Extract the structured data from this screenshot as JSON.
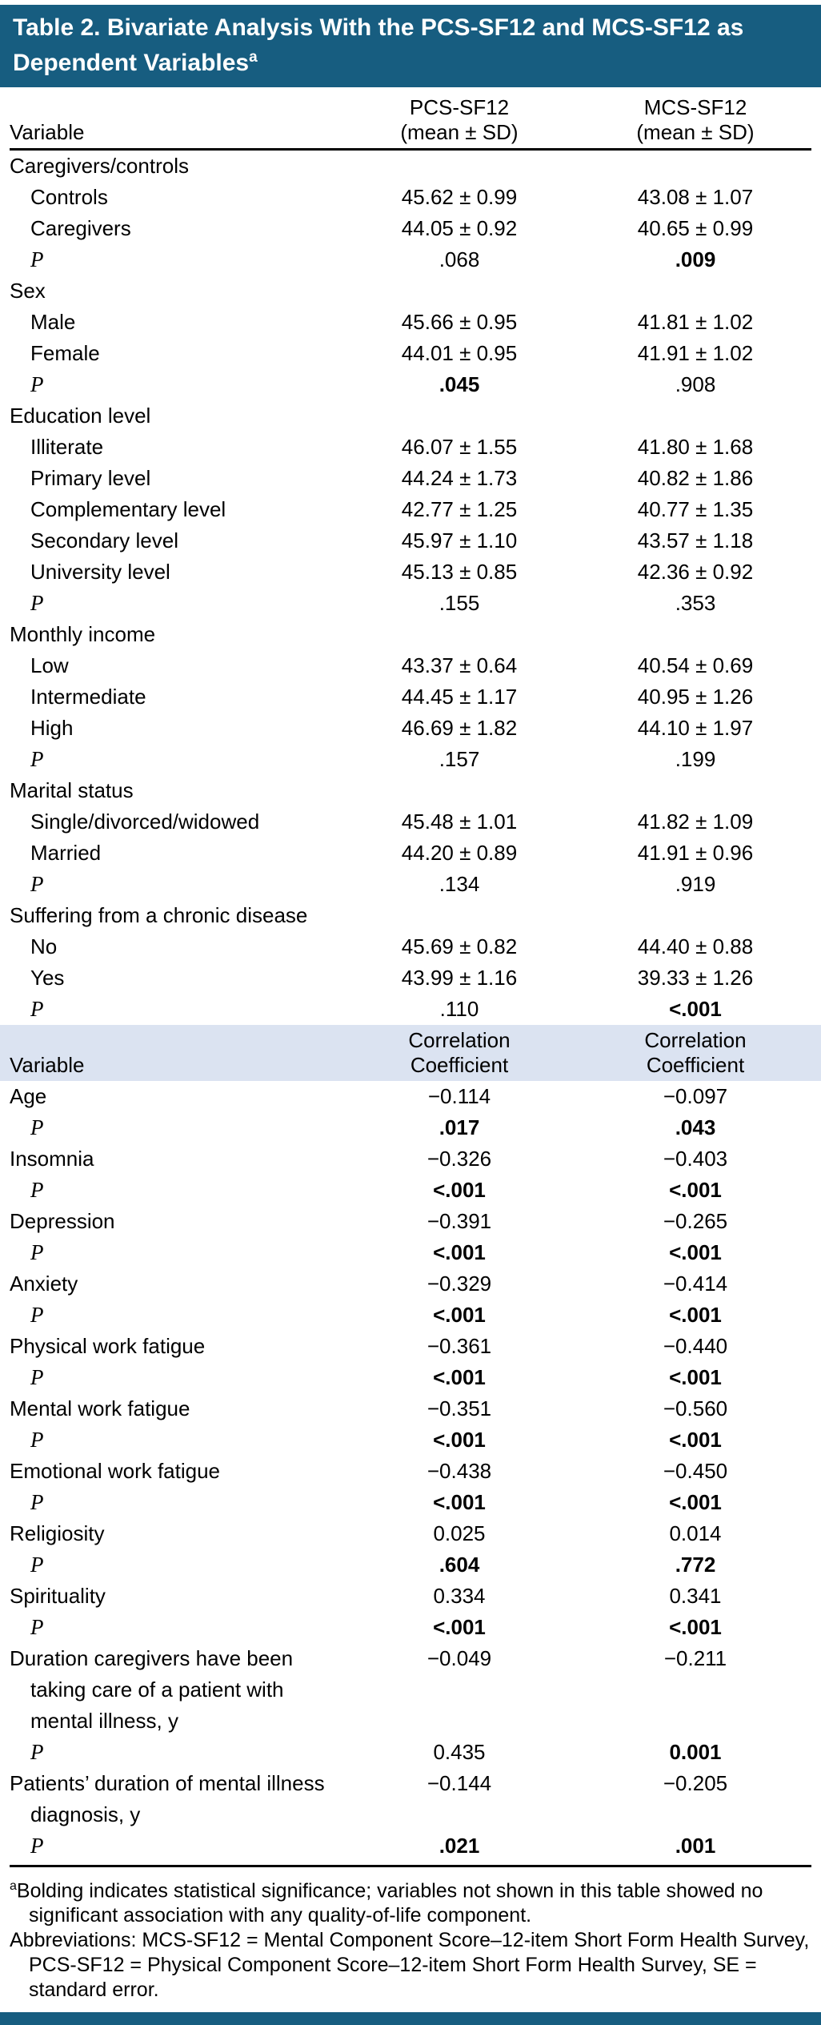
{
  "title": {
    "text": "Table 2. Bivariate Analysis With the PCS-SF12 and MCS-SF12 as Dependent Variables",
    "superscript": "a"
  },
  "colors": {
    "header_bg": "#175D80",
    "band_bg": "#DBE3F1"
  },
  "columns": {
    "variable": "Variable",
    "pcs_line1": "PCS-SF12",
    "pcs_line2": "(mean ± SD)",
    "mcs_line1": "MCS-SF12",
    "mcs_line2": "(mean ± SD)"
  },
  "section2_columns": {
    "variable": "Variable",
    "col1_line1": "Correlation",
    "col1_line2": "Coefficient",
    "col2_line1": "Correlation",
    "col2_line2": "Coefficient"
  },
  "rows_means": [
    {
      "type": "section",
      "indent": 0,
      "label": "Caregivers/controls"
    },
    {
      "type": "data",
      "indent": 1,
      "label": "Controls",
      "c1": "45.62 ± 0.99",
      "c2": "43.08 ± 1.07"
    },
    {
      "type": "data",
      "indent": 1,
      "label": "Caregivers",
      "c1": "44.05 ± 0.92",
      "c2": "40.65 ± 0.99"
    },
    {
      "type": "p",
      "indent": 1,
      "label": "P",
      "c1": ".068",
      "c2": ".009",
      "bold1": false,
      "bold2": true
    },
    {
      "type": "section",
      "indent": 0,
      "label": "Sex"
    },
    {
      "type": "data",
      "indent": 1,
      "label": "Male",
      "c1": "45.66 ± 0.95",
      "c2": "41.81 ± 1.02"
    },
    {
      "type": "data",
      "indent": 1,
      "label": "Female",
      "c1": "44.01 ± 0.95",
      "c2": "41.91 ± 1.02"
    },
    {
      "type": "p",
      "indent": 1,
      "label": "P",
      "c1": ".045",
      "c2": ".908",
      "bold1": true,
      "bold2": false
    },
    {
      "type": "section",
      "indent": 0,
      "label": "Education level"
    },
    {
      "type": "data",
      "indent": 1,
      "label": "Illiterate",
      "c1": "46.07 ± 1.55",
      "c2": "41.80 ± 1.68"
    },
    {
      "type": "data",
      "indent": 1,
      "label": "Primary level",
      "c1": "44.24 ± 1.73",
      "c2": "40.82 ± 1.86"
    },
    {
      "type": "data",
      "indent": 1,
      "label": "Complementary level",
      "c1": "42.77 ± 1.25",
      "c2": "40.77 ± 1.35"
    },
    {
      "type": "data",
      "indent": 1,
      "label": "Secondary level",
      "c1": "45.97 ± 1.10",
      "c2": "43.57 ± 1.18"
    },
    {
      "type": "data",
      "indent": 1,
      "label": "University level",
      "c1": "45.13 ± 0.85",
      "c2": "42.36 ± 0.92"
    },
    {
      "type": "p",
      "indent": 1,
      "label": "P",
      "c1": ".155",
      "c2": ".353",
      "bold1": false,
      "bold2": false
    },
    {
      "type": "section",
      "indent": 0,
      "label": "Monthly income"
    },
    {
      "type": "data",
      "indent": 1,
      "label": "Low",
      "c1": "43.37 ± 0.64",
      "c2": "40.54 ± 0.69"
    },
    {
      "type": "data",
      "indent": 1,
      "label": "Intermediate",
      "c1": "44.45 ± 1.17",
      "c2": "40.95 ± 1.26"
    },
    {
      "type": "data",
      "indent": 1,
      "label": "High",
      "c1": "46.69 ± 1.82",
      "c2": "44.10 ± 1.97"
    },
    {
      "type": "p",
      "indent": 1,
      "label": "P",
      "c1": ".157",
      "c2": ".199",
      "bold1": false,
      "bold2": false
    },
    {
      "type": "section",
      "indent": 0,
      "label": "Marital status"
    },
    {
      "type": "data",
      "indent": 1,
      "label": "Single/divorced/widowed",
      "c1": "45.48 ± 1.01",
      "c2": "41.82 ± 1.09"
    },
    {
      "type": "data",
      "indent": 1,
      "label": "Married",
      "c1": "44.20 ± 0.89",
      "c2": "41.91 ± 0.96"
    },
    {
      "type": "p",
      "indent": 1,
      "label": "P",
      "c1": ".134",
      "c2": ".919",
      "bold1": false,
      "bold2": false
    },
    {
      "type": "section",
      "indent": 0,
      "label": "Suffering from a chronic disease"
    },
    {
      "type": "data",
      "indent": 1,
      "label": "No",
      "c1": "45.69 ± 0.82",
      "c2": "44.40 ± 0.88"
    },
    {
      "type": "data",
      "indent": 1,
      "label": "Yes",
      "c1": "43.99 ± 1.16",
      "c2": "39.33 ± 1.26"
    },
    {
      "type": "p",
      "indent": 1,
      "label": "P",
      "c1": ".110",
      "c2": "<.001",
      "bold1": false,
      "bold2": true
    }
  ],
  "rows_corr": [
    {
      "type": "data",
      "indent": 0,
      "label": "Age",
      "c1": "−0.114",
      "c2": "−0.097"
    },
    {
      "type": "p",
      "indent": 1,
      "label": "P",
      "c1": ".017",
      "c2": ".043",
      "bold1": true,
      "bold2": true
    },
    {
      "type": "data",
      "indent": 0,
      "label": "Insomnia",
      "c1": "−0.326",
      "c2": "−0.403"
    },
    {
      "type": "p",
      "indent": 1,
      "label": "P",
      "c1": "<.001",
      "c2": "<.001",
      "bold1": true,
      "bold2": true
    },
    {
      "type": "data",
      "indent": 0,
      "label": "Depression",
      "c1": "−0.391",
      "c2": "−0.265"
    },
    {
      "type": "p",
      "indent": 1,
      "label": "P",
      "c1": "<.001",
      "c2": "<.001",
      "bold1": true,
      "bold2": true
    },
    {
      "type": "data",
      "indent": 0,
      "label": "Anxiety",
      "c1": "−0.329",
      "c2": "−0.414"
    },
    {
      "type": "p",
      "indent": 1,
      "label": "P",
      "c1": "<.001",
      "c2": "<.001",
      "bold1": true,
      "bold2": true
    },
    {
      "type": "data",
      "indent": 0,
      "label": "Physical work fatigue",
      "c1": "−0.361",
      "c2": "−0.440"
    },
    {
      "type": "p",
      "indent": 1,
      "label": "P",
      "c1": "<.001",
      "c2": "<.001",
      "bold1": true,
      "bold2": true
    },
    {
      "type": "data",
      "indent": 0,
      "label": "Mental work fatigue",
      "c1": "−0.351",
      "c2": "−0.560"
    },
    {
      "type": "p",
      "indent": 1,
      "label": "P",
      "c1": "<.001",
      "c2": "<.001",
      "bold1": true,
      "bold2": true
    },
    {
      "type": "data",
      "indent": 0,
      "label": "Emotional work fatigue",
      "c1": "−0.438",
      "c2": "−0.450"
    },
    {
      "type": "p",
      "indent": 1,
      "label": "P",
      "c1": "<.001",
      "c2": "<.001",
      "bold1": true,
      "bold2": true
    },
    {
      "type": "data",
      "indent": 0,
      "label": "Religiosity",
      "c1": "0.025",
      "c2": "0.014"
    },
    {
      "type": "p",
      "indent": 1,
      "label": "P",
      "c1": ".604",
      "c2": ".772",
      "bold1": true,
      "bold2": true
    },
    {
      "type": "data",
      "indent": 0,
      "label": "Spirituality",
      "c1": "0.334",
      "c2": "0.341"
    },
    {
      "type": "p",
      "indent": 1,
      "label": "P",
      "c1": "<.001",
      "c2": "<.001",
      "bold1": true,
      "bold2": true
    },
    {
      "type": "data",
      "indent": 0,
      "label": "Duration caregivers have been taking care of a patient with mental illness, y",
      "c1": "−0.049",
      "c2": "−0.211"
    },
    {
      "type": "p",
      "indent": 1,
      "label": "P",
      "c1": "0.435",
      "c2": "0.001",
      "bold1": false,
      "bold2": true
    },
    {
      "type": "data",
      "indent": 0,
      "label": "Patients’ duration of mental illness diagnosis, y",
      "c1": "−0.144",
      "c2": "−0.205"
    },
    {
      "type": "p",
      "indent": 1,
      "label": "P",
      "c1": ".021",
      "c2": ".001",
      "bold1": true,
      "bold2": true
    }
  ],
  "footnotes": {
    "note_a_sup": "a",
    "note_a": "Bolding indicates statistical significance; variables not shown in this table showed no significant association with any quality-of-life component.",
    "abbreviations": "Abbreviations: MCS-SF12 = Mental Component Score–12-item Short Form Health Survey, PCS-SF12 = Physical Component Score–12-item Short Form Health Survey, SE = standard error."
  }
}
